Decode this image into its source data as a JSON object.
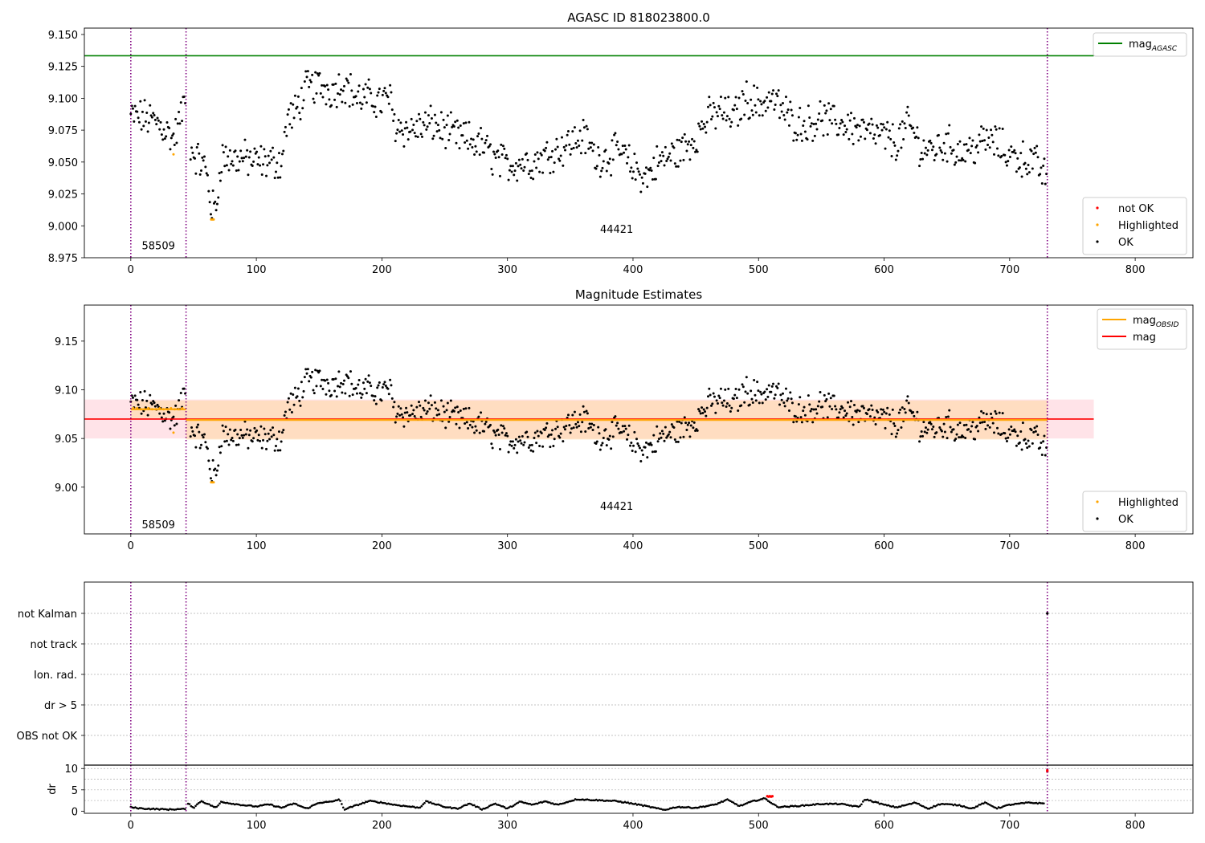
{
  "chart_data": [
    {
      "type": "scatter",
      "title": "AGASC ID 818023800.0",
      "xlim": [
        -37,
        846
      ],
      "ylim": [
        8.975,
        9.155
      ],
      "xticks": [
        0,
        100,
        200,
        300,
        400,
        500,
        600,
        700,
        800
      ],
      "yticks": [
        "8.975",
        "9.000",
        "9.025",
        "9.050",
        "9.075",
        "9.100",
        "9.125",
        "9.150"
      ],
      "obs_boundaries": [
        0,
        44,
        730
      ],
      "obs_labels": [
        {
          "text": "58509",
          "x": 22,
          "y": 8.984
        },
        {
          "text": "44421",
          "x": 387,
          "y": 8.997
        }
      ],
      "mag_agasc": {
        "value": 9.1333,
        "x_end": 767,
        "color": "#008000"
      },
      "legend_top": [
        {
          "label": "mag",
          "sub": "AGASC",
          "kind": "line",
          "color": "#008000"
        }
      ],
      "legend_bottom": [
        {
          "label": "not OK",
          "kind": "dot",
          "color": "#ff0000"
        },
        {
          "label": "Highlighted",
          "kind": "dot",
          "color": "#ffa500"
        },
        {
          "label": "OK",
          "kind": "dot",
          "color": "#000000"
        }
      ]
    },
    {
      "type": "scatter",
      "title": "Magnitude Estimates",
      "xlim": [
        -37,
        846
      ],
      "ylim": [
        8.952,
        9.187
      ],
      "xticks": [
        0,
        100,
        200,
        300,
        400,
        500,
        600,
        700,
        800
      ],
      "yticks": [
        "9.00",
        "9.05",
        "9.10",
        "9.15"
      ],
      "obs_boundaries": [
        0,
        44,
        730
      ],
      "obs_labels": [
        {
          "text": "58509",
          "x": 22,
          "y": 8.961
        },
        {
          "text": "44421",
          "x": 387,
          "y": 8.98
        }
      ],
      "mag": {
        "value": 9.07,
        "band": [
          9.05,
          9.09
        ],
        "x_end": 767,
        "color": "#ff0000"
      },
      "mag_obsid": [
        {
          "x0": 0,
          "x1": 44,
          "value": 9.08,
          "band": [
            9.071,
            9.089
          ]
        },
        {
          "x0": 44,
          "x1": 730,
          "value": 9.069,
          "band": [
            9.049,
            9.089
          ]
        }
      ],
      "legend_top": [
        {
          "label": "mag",
          "sub": "OBSID",
          "kind": "line",
          "color": "#ffa500"
        },
        {
          "label": "mag",
          "sub": "",
          "kind": "line",
          "color": "#ff0000"
        }
      ],
      "legend_bottom": [
        {
          "label": "Highlighted",
          "kind": "dot",
          "color": "#ffa500"
        },
        {
          "label": "OK",
          "kind": "dot",
          "color": "#000000"
        }
      ]
    },
    {
      "type": "scatter",
      "title": "",
      "categories": [
        "not Kalman",
        "not track",
        "Ion. rad.",
        "dr > 5",
        "OBS not OK"
      ],
      "obs_boundaries": [
        0,
        44,
        730
      ],
      "xlim": [
        -37,
        846
      ],
      "flag_points": [
        {
          "category": "not Kalman",
          "x": 730
        }
      ]
    },
    {
      "type": "scatter",
      "title": "",
      "ylabel": "dr",
      "xlim": [
        -37,
        846
      ],
      "ylim": [
        -0.5,
        10.8
      ],
      "xticks": [
        0,
        100,
        200,
        300,
        400,
        500,
        600,
        700,
        800
      ],
      "yticks": [
        "0",
        "5",
        "10"
      ],
      "obs_boundaries": [
        0,
        44,
        730
      ],
      "red_points": [
        {
          "x": 507,
          "y": 3.5
        },
        {
          "x": 508,
          "y": 3.4
        },
        {
          "x": 509,
          "y": 3.5
        },
        {
          "x": 510,
          "y": 3.4
        },
        {
          "x": 511,
          "y": 3.5
        },
        {
          "x": 730,
          "y": 9.6
        },
        {
          "x": 730,
          "y": 9.3
        }
      ]
    }
  ],
  "mag_series": {
    "description": "",
    "anchors": [
      [
        0,
        9.086
      ],
      [
        10,
        9.085
      ],
      [
        20,
        9.082
      ],
      [
        28,
        9.075
      ],
      [
        34,
        9.068
      ],
      [
        40,
        9.085
      ],
      [
        44,
        9.105
      ],
      [
        48,
        9.06
      ],
      [
        55,
        9.05
      ],
      [
        60,
        9.045
      ],
      [
        64,
        9.015
      ],
      [
        68,
        9.013
      ],
      [
        72,
        9.055
      ],
      [
        80,
        9.052
      ],
      [
        90,
        9.053
      ],
      [
        100,
        9.05
      ],
      [
        110,
        9.05
      ],
      [
        120,
        9.05
      ],
      [
        125,
        9.085
      ],
      [
        130,
        9.087
      ],
      [
        140,
        9.108
      ],
      [
        150,
        9.11
      ],
      [
        160,
        9.106
      ],
      [
        170,
        9.112
      ],
      [
        180,
        9.1
      ],
      [
        190,
        9.1
      ],
      [
        200,
        9.097
      ],
      [
        206,
        9.102
      ],
      [
        210,
        9.08
      ],
      [
        220,
        9.075
      ],
      [
        230,
        9.077
      ],
      [
        240,
        9.08
      ],
      [
        250,
        9.075
      ],
      [
        260,
        9.07
      ],
      [
        270,
        9.067
      ],
      [
        280,
        9.063
      ],
      [
        290,
        9.052
      ],
      [
        300,
        9.048
      ],
      [
        310,
        9.05
      ],
      [
        320,
        9.05
      ],
      [
        330,
        9.055
      ],
      [
        340,
        9.06
      ],
      [
        350,
        9.065
      ],
      [
        360,
        9.07
      ],
      [
        365,
        9.065
      ],
      [
        370,
        9.053
      ],
      [
        380,
        9.055
      ],
      [
        390,
        9.058
      ],
      [
        400,
        9.045
      ],
      [
        410,
        9.038
      ],
      [
        420,
        9.05
      ],
      [
        430,
        9.055
      ],
      [
        440,
        9.06
      ],
      [
        450,
        9.07
      ],
      [
        460,
        9.085
      ],
      [
        470,
        9.09
      ],
      [
        480,
        9.085
      ],
      [
        490,
        9.1
      ],
      [
        500,
        9.095
      ],
      [
        510,
        9.1
      ],
      [
        520,
        9.09
      ],
      [
        530,
        9.08
      ],
      [
        540,
        9.08
      ],
      [
        550,
        9.085
      ],
      [
        560,
        9.08
      ],
      [
        570,
        9.08
      ],
      [
        580,
        9.075
      ],
      [
        590,
        9.072
      ],
      [
        600,
        9.07
      ],
      [
        610,
        9.065
      ],
      [
        620,
        9.08
      ],
      [
        630,
        9.06
      ],
      [
        640,
        9.06
      ],
      [
        650,
        9.065
      ],
      [
        660,
        9.058
      ],
      [
        670,
        9.06
      ],
      [
        680,
        9.067
      ],
      [
        690,
        9.065
      ],
      [
        700,
        9.055
      ],
      [
        710,
        9.053
      ],
      [
        720,
        9.05
      ],
      [
        730,
        9.037
      ]
    ],
    "highlighted": [
      [
        2,
        9.081
      ],
      [
        5,
        9.081
      ],
      [
        8,
        9.08
      ],
      [
        11,
        9.08
      ],
      [
        14,
        9.081
      ],
      [
        17,
        9.08
      ],
      [
        20,
        9.08
      ],
      [
        23,
        9.081
      ],
      [
        26,
        9.08
      ],
      [
        29,
        9.08
      ],
      [
        32,
        9.081
      ],
      [
        35,
        9.08
      ],
      [
        38,
        9.08
      ],
      [
        41,
        9.081
      ],
      [
        34,
        9.056
      ],
      [
        64,
        9.005
      ],
      [
        65,
        9.005
      ],
      [
        66,
        9.005
      ]
    ]
  },
  "dr_series": {
    "anchors": [
      [
        0,
        0.9
      ],
      [
        10,
        0.6
      ],
      [
        20,
        0.5
      ],
      [
        30,
        0.4
      ],
      [
        43,
        0.5
      ],
      [
        46,
        1.8
      ],
      [
        50,
        0.8
      ],
      [
        56,
        2.4
      ],
      [
        62,
        1.6
      ],
      [
        68,
        0.8
      ],
      [
        72,
        2.2
      ],
      [
        80,
        1.8
      ],
      [
        90,
        1.4
      ],
      [
        100,
        1.1
      ],
      [
        110,
        1.6
      ],
      [
        120,
        0.8
      ],
      [
        130,
        1.8
      ],
      [
        140,
        0.6
      ],
      [
        150,
        2.0
      ],
      [
        160,
        2.2
      ],
      [
        166,
        2.8
      ],
      [
        170,
        0.4
      ],
      [
        190,
        2.4
      ],
      [
        200,
        2.0
      ],
      [
        210,
        1.5
      ],
      [
        230,
        0.8
      ],
      [
        235,
        2.3
      ],
      [
        250,
        1.0
      ],
      [
        260,
        0.6
      ],
      [
        270,
        1.8
      ],
      [
        280,
        0.4
      ],
      [
        290,
        1.8
      ],
      [
        300,
        0.6
      ],
      [
        310,
        2.2
      ],
      [
        320,
        1.5
      ],
      [
        330,
        2.3
      ],
      [
        340,
        1.5
      ],
      [
        355,
        2.8
      ],
      [
        370,
        2.6
      ],
      [
        385,
        2.4
      ],
      [
        395,
        2.0
      ],
      [
        405,
        1.5
      ],
      [
        415,
        0.9
      ],
      [
        425,
        0.3
      ],
      [
        435,
        1.0
      ],
      [
        450,
        0.8
      ],
      [
        465,
        1.5
      ],
      [
        475,
        2.7
      ],
      [
        485,
        1.2
      ],
      [
        495,
        2.3
      ],
      [
        505,
        3.0
      ],
      [
        515,
        1.0
      ],
      [
        525,
        1.1
      ],
      [
        535,
        1.3
      ],
      [
        550,
        1.7
      ],
      [
        565,
        1.7
      ],
      [
        580,
        1.0
      ],
      [
        585,
        2.8
      ],
      [
        600,
        1.5
      ],
      [
        610,
        0.9
      ],
      [
        625,
        2.0
      ],
      [
        635,
        0.6
      ],
      [
        645,
        1.7
      ],
      [
        660,
        1.4
      ],
      [
        670,
        0.6
      ],
      [
        680,
        2.0
      ],
      [
        690,
        0.7
      ],
      [
        700,
        1.5
      ],
      [
        715,
        2.0
      ],
      [
        728,
        1.8
      ]
    ]
  },
  "colors": {
    "ok": "#000000",
    "highlighted": "#ffa500",
    "not_ok": "#ff0000",
    "agasc": "#008000",
    "boundary": "#800080",
    "band_mag": "#ffc0cb",
    "band_obsid": "#ffdab0"
  }
}
